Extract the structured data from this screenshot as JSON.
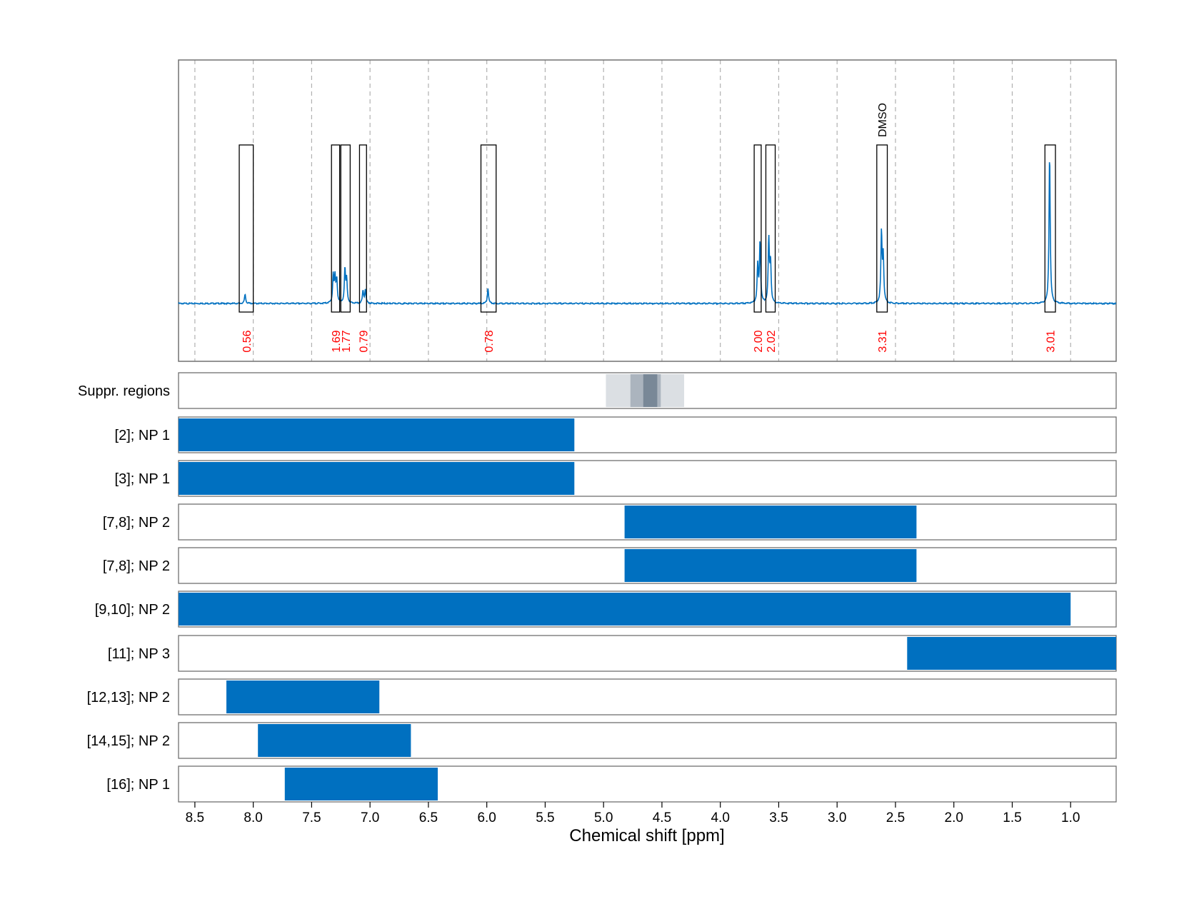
{
  "chart_data": {
    "type": "line",
    "xlabel": "Chemical shift [ppm]",
    "ylabel": "",
    "xlim": [
      8.64,
      0.61
    ],
    "x_reversed": true,
    "grid": "vertical dashed",
    "x_ticks": [
      8.5,
      8.0,
      7.5,
      7.0,
      6.5,
      6.0,
      5.5,
      5.0,
      4.5,
      4.0,
      3.5,
      3.0,
      2.5,
      2.0,
      1.5,
      1.0
    ],
    "x_tick_labels": [
      "8.5",
      "8.0",
      "7.5",
      "7.0",
      "6.5",
      "6.0",
      "5.5",
      "5.0",
      "4.5",
      "4.0",
      "3.5",
      "3.0",
      "2.5",
      "2.0",
      "1.5",
      "1.0"
    ],
    "spectrum": {
      "color": "#0070c0",
      "peaks": [
        {
          "ppm": 8.07,
          "height": 0.06
        },
        {
          "ppm": 7.315,
          "height": 0.18
        },
        {
          "ppm": 7.3,
          "height": 0.16
        },
        {
          "ppm": 7.285,
          "height": 0.15
        },
        {
          "ppm": 7.215,
          "height": 0.22
        },
        {
          "ppm": 7.2,
          "height": 0.15
        },
        {
          "ppm": 7.06,
          "height": 0.08
        },
        {
          "ppm": 7.04,
          "height": 0.09
        },
        {
          "ppm": 5.99,
          "height": 0.1
        },
        {
          "ppm": 3.68,
          "height": 0.24
        },
        {
          "ppm": 3.66,
          "height": 0.4
        },
        {
          "ppm": 3.585,
          "height": 0.41
        },
        {
          "ppm": 3.57,
          "height": 0.26
        },
        {
          "ppm": 2.62,
          "height": 0.45
        },
        {
          "ppm": 2.605,
          "height": 0.3
        },
        {
          "ppm": 1.18,
          "height": 0.97
        }
      ]
    },
    "integration_regions": [
      {
        "from": 8.12,
        "to": 8.0,
        "label": "0.56"
      },
      {
        "from": 7.33,
        "to": 7.26,
        "label": "1.69"
      },
      {
        "from": 7.25,
        "to": 7.17,
        "label": "1.77"
      },
      {
        "from": 7.09,
        "to": 7.03,
        "label": "0.79"
      },
      {
        "from": 6.05,
        "to": 5.92,
        "label": "0.78"
      },
      {
        "from": 3.71,
        "to": 3.65,
        "label": "2.00"
      },
      {
        "from": 3.61,
        "to": 3.53,
        "label": "2.02"
      },
      {
        "from": 2.66,
        "to": 2.57,
        "label": "3.31"
      },
      {
        "from": 1.22,
        "to": 1.13,
        "label": "3.01"
      }
    ],
    "integral_label_color": "#ff0000",
    "annotations": [
      {
        "text": "DMSO",
        "ppm": 2.615
      }
    ],
    "suppression_regions": [
      {
        "from": 4.98,
        "to": 4.31,
        "intensity": 0.25
      },
      {
        "from": 4.77,
        "to": 4.51,
        "intensity": 0.45
      },
      {
        "from": 4.66,
        "to": 4.54,
        "intensity": 0.85
      }
    ],
    "suppression_color": "#708090",
    "tracks": [
      {
        "label": "Suppr. regions",
        "kind": "suppression"
      },
      {
        "label": "[2]; NP 1",
        "from": 8.64,
        "to": 5.25
      },
      {
        "label": "[3]; NP 1",
        "from": 8.64,
        "to": 5.25
      },
      {
        "label": "[7,8]; NP 2",
        "from": 4.82,
        "to": 2.32
      },
      {
        "label": "[7,8]; NP 2",
        "from": 4.82,
        "to": 2.32
      },
      {
        "label": "[9,10]; NP 2",
        "from": 8.64,
        "to": 1.0
      },
      {
        "label": "[11]; NP 3",
        "from": 2.4,
        "to": 0.61
      },
      {
        "label": "[12,13]; NP 2",
        "from": 8.23,
        "to": 6.92
      },
      {
        "label": "[14,15]; NP 2",
        "from": 7.96,
        "to": 6.65
      },
      {
        "label": "[16]; NP 1",
        "from": 7.73,
        "to": 6.42
      }
    ],
    "bar_color": "#0070c0"
  }
}
